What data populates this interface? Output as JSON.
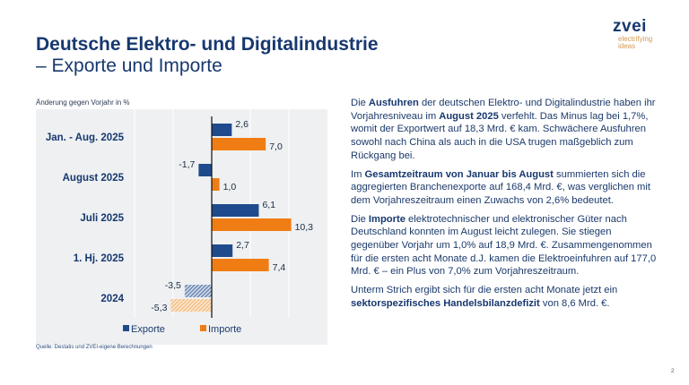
{
  "header": {
    "title_line1": "Deutsche Elektro- und Digitalindustrie",
    "title_line2": "– Exporte und Importe"
  },
  "logo": {
    "wordmark": "zvei",
    "tagline_1": "electrifying",
    "tagline_2": "ideas"
  },
  "chart_data": {
    "type": "bar",
    "orientation": "horizontal",
    "title": "",
    "ylabel": "Änderung gegen Vorjahr in %",
    "xlabel": "",
    "categories": [
      "Jan. - Aug. 2025",
      "August 2025",
      "Juli 2025",
      "1. Hj. 2025",
      "2024"
    ],
    "series": [
      {
        "name": "Exporte",
        "color": "#1f4b8c",
        "values": [
          2.6,
          -1.7,
          6.1,
          2.7,
          -3.5
        ]
      },
      {
        "name": "Importe",
        "color": "#f07d14",
        "values": [
          7.0,
          1.0,
          10.3,
          7.4,
          -5.3
        ]
      }
    ],
    "value_labels": {
      "Exporte": [
        "2,6",
        "-1,7",
        "6,1",
        "2,7",
        "-3,5"
      ],
      "Importe": [
        "7,0",
        "1,0",
        "10,3",
        "7,4",
        "-5,3"
      ]
    },
    "hatched_categories": [
      "2024"
    ],
    "xlim": [
      -12.5,
      15
    ],
    "gridlines_x": [
      -10,
      -5,
      0,
      5,
      10
    ],
    "grid": true,
    "legend": "bottom",
    "background": "#eef0f2",
    "source": "Quelle: Destatis und ZVEI-eigene Berechnungen"
  },
  "body": {
    "p1": [
      {
        "t": "Die ",
        "b": false
      },
      {
        "t": "Ausfuhren",
        "b": true
      },
      {
        "t": " der deutschen Elektro- und Digitalindustrie haben ihr Vorjahresniveau im ",
        "b": false
      },
      {
        "t": "August 2025",
        "b": true
      },
      {
        "t": " verfehlt. Das Minus lag bei 1,7%, womit der Exportwert auf 18,3 Mrd. € kam. Schwächere Ausfuhren sowohl nach China als auch in die USA trugen maßgeblich zum Rückgang bei.",
        "b": false
      }
    ],
    "p2": [
      {
        "t": "Im ",
        "b": false
      },
      {
        "t": "Gesamtzeitraum von Januar bis August",
        "b": true
      },
      {
        "t": " summierten sich die aggregierten Branchenexporte auf 168,4 Mrd. €, was verglichen mit dem Vorjahreszeitraum einen Zuwachs von 2,6% bedeutet.",
        "b": false
      }
    ],
    "p3": [
      {
        "t": "Die ",
        "b": false
      },
      {
        "t": "Importe",
        "b": true
      },
      {
        "t": " elektrotechnischer und elektronischer Güter nach Deutschland konnten im August leicht zulegen. Sie stiegen gegenüber Vorjahr um 1,0% auf 18,9 Mrd. €. Zusammengenommen für die ersten acht Monate d.J. kamen die Elektroeinfuhren auf 177,0 Mrd. € – ein Plus von 7,0% zum Vorjahreszeitraum.",
        "b": false
      }
    ],
    "p4": [
      {
        "t": "Unterm Strich ergibt sich für die ersten acht Monate jetzt ein ",
        "b": false
      },
      {
        "t": "sektorspezifisches Handelsbilanzdefizit",
        "b": true
      },
      {
        "t": " von 8,6 Mrd. €.",
        "b": false
      }
    ]
  },
  "footer": {
    "page_number": "2"
  }
}
